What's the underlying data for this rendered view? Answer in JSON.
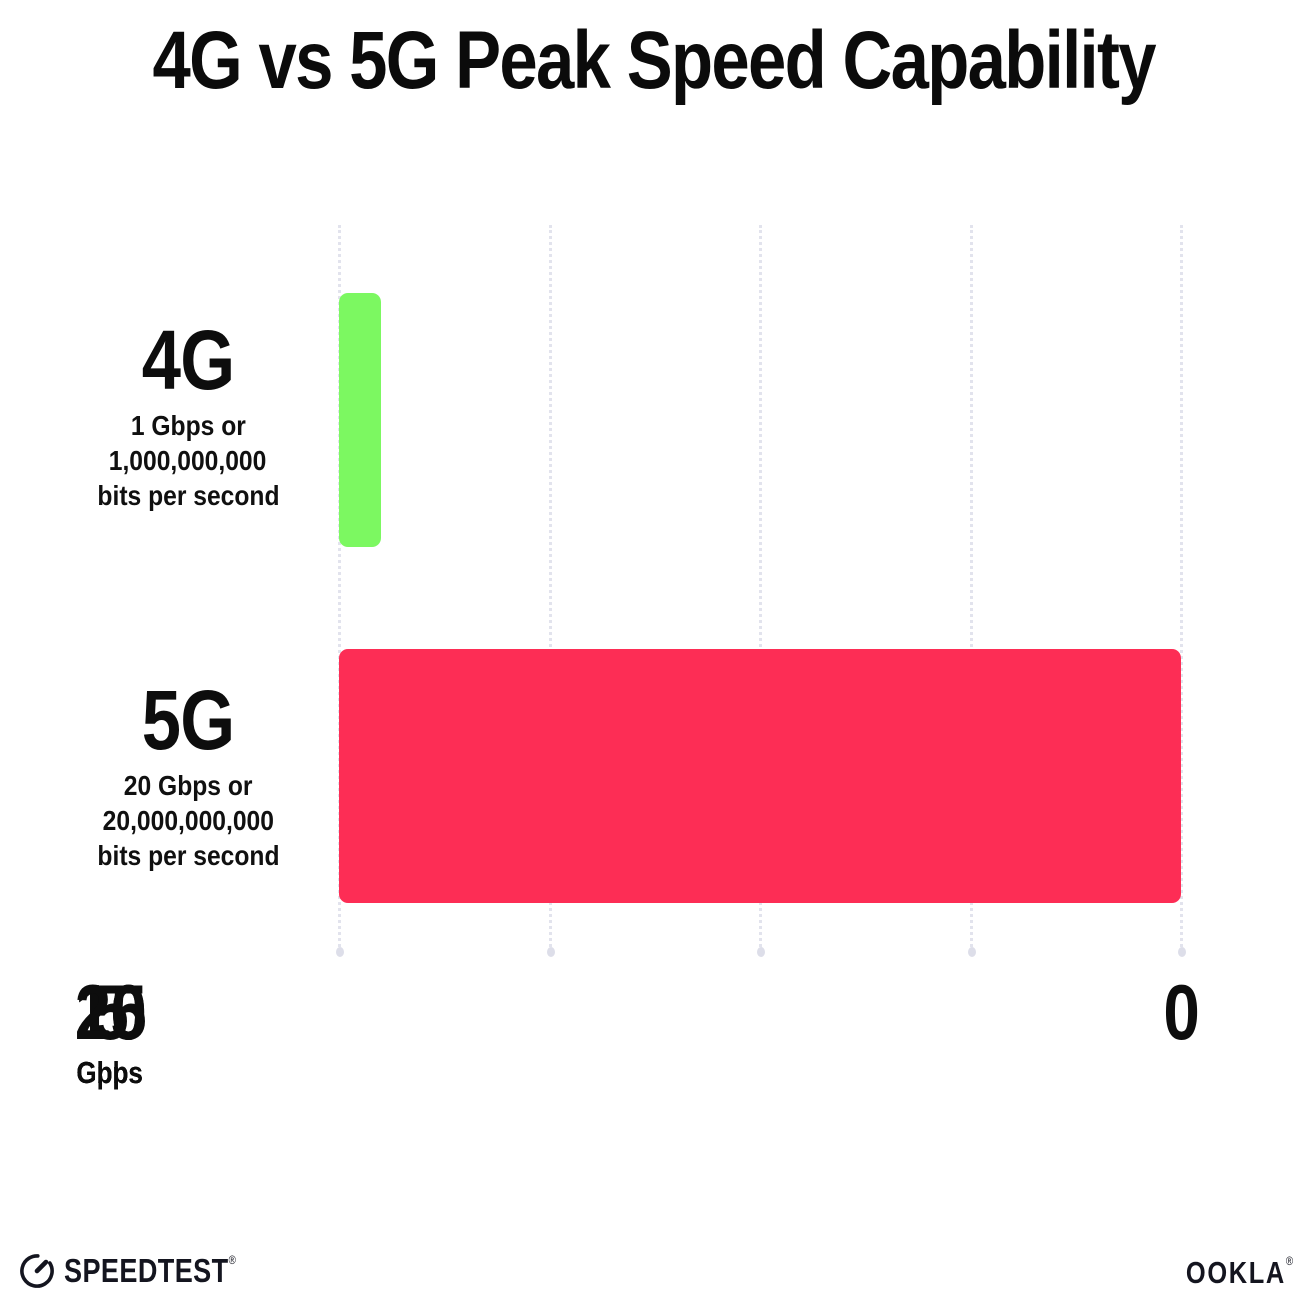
{
  "chart_data": {
    "type": "bar",
    "orientation": "horizontal",
    "title": "4G vs 5G Peak Speed Capability",
    "categories": [
      "4G",
      "5G"
    ],
    "values": [
      1,
      20
    ],
    "unit": "Gbps",
    "bar_colors": [
      "#7CF861",
      "#FD2D55"
    ],
    "category_descriptions": [
      [
        "1 Gbps or",
        "1,000,000,000",
        "bits per second"
      ],
      [
        "20 Gbps or",
        "20,000,000,000",
        "bits per second"
      ]
    ],
    "xlim": [
      0,
      20
    ],
    "x_ticks": [
      {
        "value": 0,
        "label": "0",
        "sublabel": ""
      },
      {
        "value": 5,
        "label": "5",
        "sublabel": "Gbps"
      },
      {
        "value": 10,
        "label": "10",
        "sublabel": "Gpbs"
      },
      {
        "value": 15,
        "label": "15",
        "sublabel": "Gbps"
      },
      {
        "value": 20,
        "label": "20",
        "sublabel": "Gbps"
      }
    ],
    "grid": "vertical dotted gridlines",
    "legend": "none",
    "background": "#ffffff",
    "text_color": "#0d0d0d"
  },
  "footer": {
    "speedtest": {
      "wordmark": "SPEEDTEST",
      "trademark": "®"
    },
    "ookla": {
      "wordmark": "OOKLA",
      "trademark": "®"
    }
  }
}
